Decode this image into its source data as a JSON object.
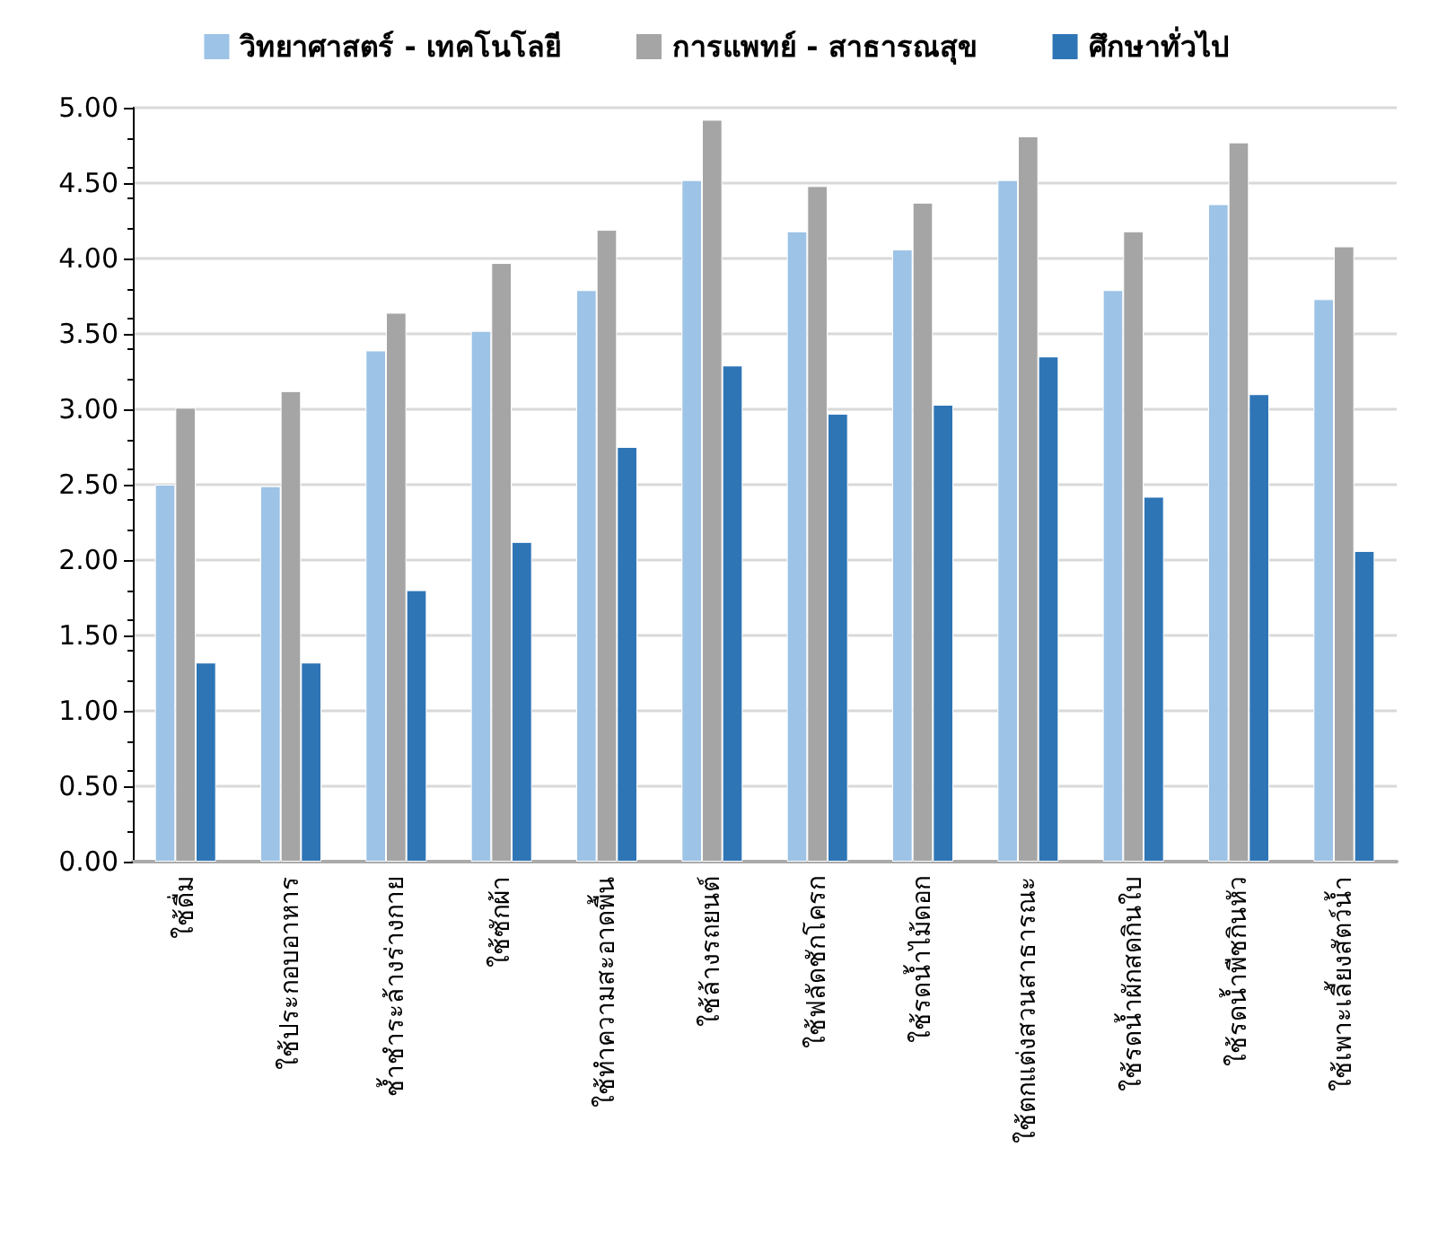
{
  "chart_data": {
    "type": "bar",
    "categories": [
      "ใช้ดื่ม",
      "ใช้ประกอบอาหาร",
      "ช้ำชำระล้างร่างกาย",
      "ใช้ซักผ้า",
      "ใช้ทำความสะอาดพื้น",
      "ใช้ล้างรถยนต์",
      "ใช้ฟลัดชักโครก",
      "ใช้รดน้ำไม้ดอก",
      "ใช้ตกแต่งสวนสาธารณะ",
      "ใช้รดน้ำผักสดกินใบ",
      "ใช้รดน้ำพืชกินหัว",
      "ใช้เพาะเลี้ยงสัตว์น้ำ"
    ],
    "series": [
      {
        "name": "วิทยาศาสตร์ - เทคโนโลยี",
        "color": "#9dc3e6",
        "values": [
          2.5,
          2.49,
          3.39,
          3.52,
          3.79,
          4.52,
          4.18,
          4.06,
          4.52,
          3.79,
          4.36,
          3.73
        ]
      },
      {
        "name": "การแพทย์ - สาธารณสุข",
        "color": "#a5a5a5",
        "values": [
          3.01,
          3.12,
          3.64,
          3.97,
          4.19,
          4.92,
          4.48,
          4.37,
          4.81,
          4.18,
          4.77,
          4.08
        ]
      },
      {
        "name": "ศึกษาทั่วไป",
        "color": "#2e75b6",
        "values": [
          1.32,
          1.32,
          1.8,
          2.12,
          2.75,
          3.29,
          2.97,
          3.03,
          3.35,
          2.42,
          3.1,
          2.06
        ]
      }
    ],
    "ylim": [
      0,
      5
    ],
    "yticks": [
      {
        "value": 0,
        "label": "0.00"
      },
      {
        "value": 0.5,
        "label": "0.50"
      },
      {
        "value": 1,
        "label": "1.00"
      },
      {
        "value": 1.5,
        "label": "1.50"
      },
      {
        "value": 2,
        "label": "2.00"
      },
      {
        "value": 2.5,
        "label": "2.50"
      },
      {
        "value": 3,
        "label": "3.00"
      },
      {
        "value": 3.5,
        "label": "3.50"
      },
      {
        "value": 4,
        "label": "4.00"
      },
      {
        "value": 4.5,
        "label": "4.50"
      },
      {
        "value": 5,
        "label": "5.00"
      }
    ],
    "grid": "y",
    "legend": "top"
  }
}
